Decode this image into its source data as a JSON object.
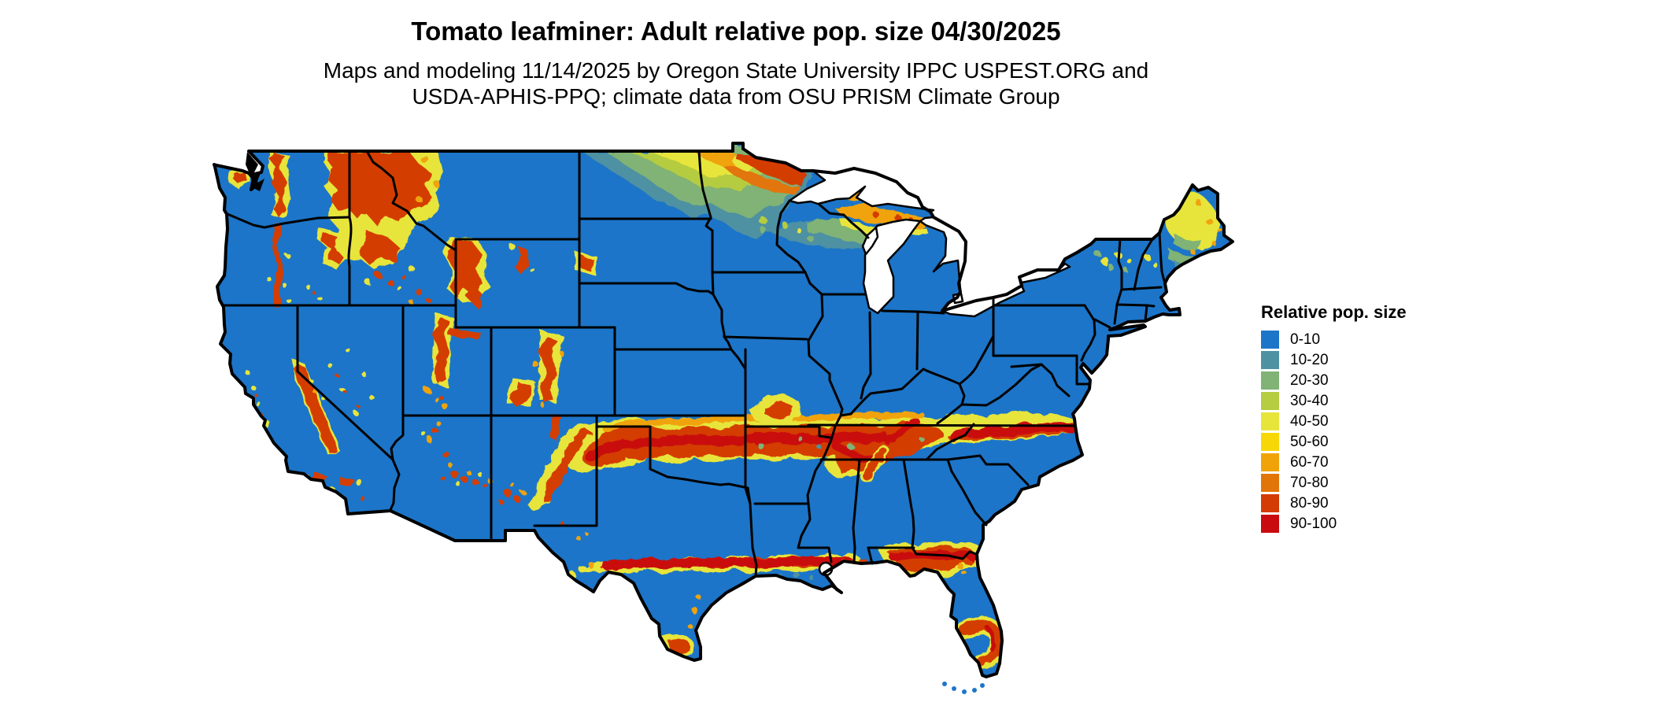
{
  "header": {
    "title": "Tomato leafminer: Adult relative pop. size 04/30/2025",
    "subtitle_line1": "Maps and modeling 11/14/2025 by Oregon State University IPPC USPEST.ORG and",
    "subtitle_line2": "USDA-APHIS-PPQ; climate data from OSU PRISM Climate Group"
  },
  "legend": {
    "title": "Relative pop. size",
    "entries": [
      {
        "label": "0-10",
        "color": "#1c75c8"
      },
      {
        "label": "10-20",
        "color": "#4e91a3"
      },
      {
        "label": "20-30",
        "color": "#80b375"
      },
      {
        "label": "30-40",
        "color": "#b6cc41"
      },
      {
        "label": "40-50",
        "color": "#e7e53b"
      },
      {
        "label": "50-60",
        "color": "#f7d806"
      },
      {
        "label": "60-70",
        "color": "#f0a309"
      },
      {
        "label": "70-80",
        "color": "#e27508"
      },
      {
        "label": "80-90",
        "color": "#d43c06"
      },
      {
        "label": "90-100",
        "color": "#c90a0e"
      }
    ]
  },
  "map": {
    "region": "Contiguous United States",
    "layer": "Adult relative population size raster (classified 0-100)",
    "base_class": "0-10",
    "water_color": "#ffffff",
    "border_color": "#000000"
  }
}
